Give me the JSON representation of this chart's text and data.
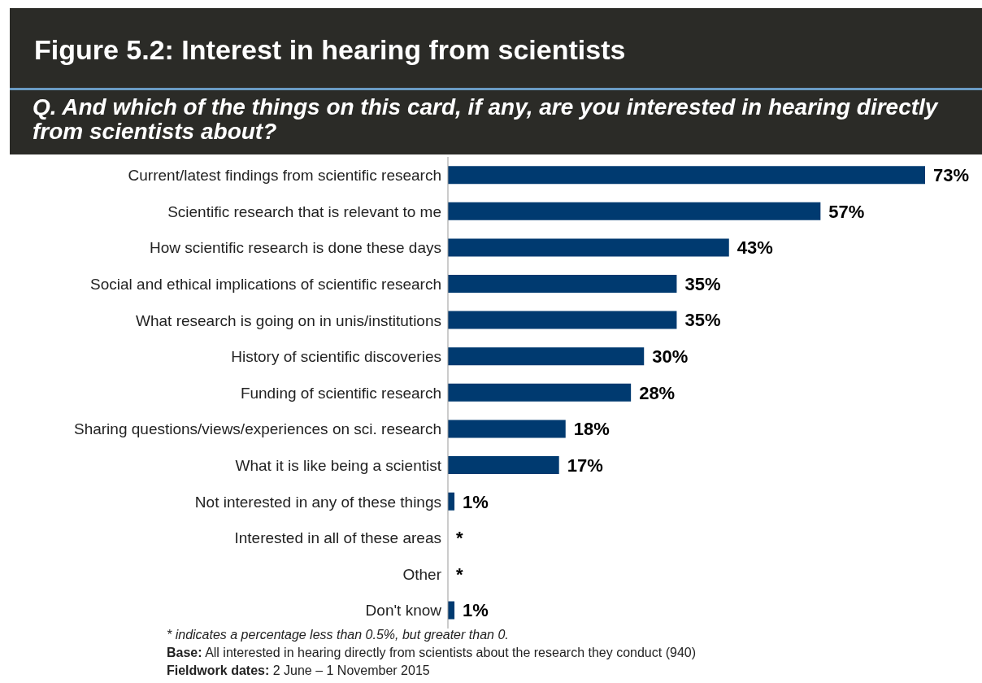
{
  "chart_data": {
    "type": "bar",
    "orientation": "horizontal",
    "title": "Figure 5.2: Interest in hearing from scientists",
    "subtitle": "Q. And which of the things on this card, if any, are you interested in hearing directly from scientists about?",
    "categories": [
      "Current/latest findings from scientific research",
      "Scientific research that is relevant to me",
      "How scientific research is done these days",
      "Social and ethical implications of scientific research",
      "What research is going on in unis/institutions",
      "History of scientific discoveries",
      "Funding of scientific research",
      "Sharing questions/views/experiences on sci. research",
      "What it is like being a scientist",
      "Not interested in any of these things",
      "Interested in all of these areas",
      "Other",
      "Don't know"
    ],
    "values": [
      73,
      57,
      43,
      35,
      35,
      30,
      28,
      18,
      17,
      1,
      null,
      null,
      1
    ],
    "value_labels": [
      "73%",
      "57%",
      "43%",
      "35%",
      "35%",
      "30%",
      "28%",
      "18%",
      "17%",
      "1%",
      "*",
      "*",
      "1%"
    ],
    "color": "#003a70",
    "grid": false,
    "legend": false,
    "annotations": [
      "* indicates a percentage less than 0.5%, but greater than 0.",
      "Base: All interested in hearing directly from scientists about the research they conduct (940)",
      "Fieldwork dates: 2 June – 1 November 2015"
    ]
  }
}
